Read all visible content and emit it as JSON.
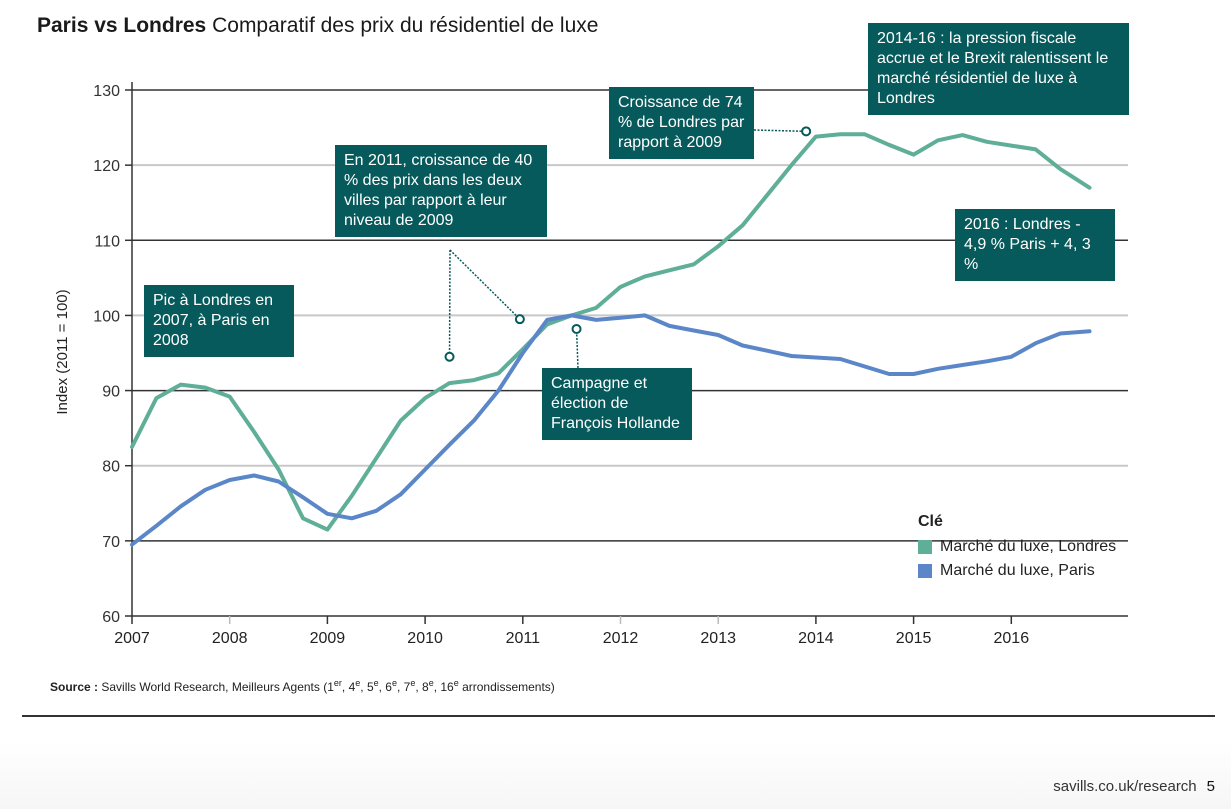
{
  "page": {
    "title_bold": "Paris vs Londres",
    "title_rest": "Comparatif des prix du résidentiel de luxe",
    "source_label": "Source :",
    "source_text": "Savills World Research, Meilleurs Agents (1",
    "source_parts": [
      {
        "base": "Savills World Research, Meilleurs Agents (1",
        "sup": "er"
      },
      {
        "base": ", 4",
        "sup": "e"
      },
      {
        "base": ", 5",
        "sup": "e"
      },
      {
        "base": ", 6",
        "sup": "e"
      },
      {
        "base": ", 7",
        "sup": "e"
      },
      {
        "base": ", 8",
        "sup": "e"
      },
      {
        "base": ", 16",
        "sup": "e"
      },
      {
        "base": " arrondissements)",
        "sup": ""
      }
    ],
    "footer_url": "savills.co.uk/research",
    "footer_page": "5"
  },
  "annotations": [
    {
      "id": "pic",
      "text": "Pic à Londres en 2007, à Paris en 2008"
    },
    {
      "id": "croissance2011",
      "text": "En 2011, croissance de 40 % des prix dans les deux villes par rapport à leur niveau de 2009"
    },
    {
      "id": "croissance74",
      "text": "Croissance de 74 % de Londres par rapport à 2009"
    },
    {
      "id": "pression",
      "text": "2014-16 : la pression fiscale accrue et le Brexit ralentissent le marché résidentiel de luxe à Londres"
    },
    {
      "id": "y2016",
      "text": "2016 : Londres - 4,9 % Paris + 4, 3 %"
    },
    {
      "id": "hollande",
      "text": "Campagne et élection de François Hollande"
    }
  ],
  "colors": {
    "londres": "#5fae98",
    "paris": "#5b87c8",
    "annotation_bg": "#075a5c"
  },
  "chart_data": {
    "type": "line",
    "title": "Paris vs Londres Comparatif des prix du résidentiel de luxe",
    "xlabel": "",
    "ylabel": "Index (2011 = 100)",
    "xlim": [
      2007,
      2016.85
    ],
    "ylim": [
      60,
      130
    ],
    "yticks": [
      60,
      70,
      80,
      90,
      100,
      110,
      120,
      130
    ],
    "xticks": [
      "2007",
      "2008",
      "2009",
      "2010",
      "2011",
      "2012",
      "2013",
      "2014",
      "2015",
      "2016"
    ],
    "grid": true,
    "legend_title": "Clé",
    "legend_position": "bottom-right",
    "x": [
      2007.0,
      2007.25,
      2007.5,
      2007.75,
      2008.0,
      2008.25,
      2008.5,
      2008.75,
      2009.0,
      2009.25,
      2009.5,
      2009.75,
      2010.0,
      2010.25,
      2010.5,
      2010.75,
      2011.0,
      2011.25,
      2011.5,
      2011.75,
      2012.0,
      2012.25,
      2012.5,
      2012.75,
      2013.0,
      2013.25,
      2013.5,
      2013.75,
      2014.0,
      2014.25,
      2014.5,
      2014.75,
      2015.0,
      2015.25,
      2015.5,
      2015.75,
      2016.0,
      2016.25,
      2016.5,
      2016.8
    ],
    "series": [
      {
        "name": "Marché du luxe, Londres",
        "color": "#5fae98",
        "values": [
          82.5,
          89,
          90.8,
          90.4,
          89.2,
          84.5,
          79.5,
          73,
          71.5,
          76,
          81,
          86,
          89,
          91,
          91.4,
          92.3,
          95.5,
          98.8,
          100,
          101,
          103.8,
          105.2,
          106,
          106.8,
          109.2,
          112,
          116,
          120,
          123.8,
          124.1,
          124.1,
          122.7,
          121.4,
          123.3,
          124,
          123.1,
          122.6,
          122.1,
          119.5,
          117
        ]
      },
      {
        "name": "Marché du luxe, Paris",
        "color": "#5b87c8",
        "values": [
          69.5,
          72,
          74.6,
          76.8,
          78.1,
          78.7,
          77.9,
          75.8,
          73.6,
          73,
          74,
          76.2,
          79.5,
          82.8,
          86,
          90,
          95,
          99.4,
          100,
          99.4,
          99.7,
          100,
          98.6,
          98,
          97.4,
          96,
          95.3,
          94.6,
          94.4,
          94.2,
          93.2,
          92.2,
          92.2,
          92.9,
          93.4,
          93.9,
          94.5,
          96.3,
          97.6,
          97.9
        ]
      }
    ],
    "annotation_targets": [
      {
        "annotation": "croissance2011",
        "x": 2010.25,
        "y": 94.5
      },
      {
        "annotation": "croissance2011",
        "x": 2010.97,
        "y": 99.5
      },
      {
        "annotation": "hollande",
        "x": 2011.55,
        "y": 98.2
      },
      {
        "annotation": "croissance74",
        "x": 2013.9,
        "y": 124.5
      }
    ]
  }
}
